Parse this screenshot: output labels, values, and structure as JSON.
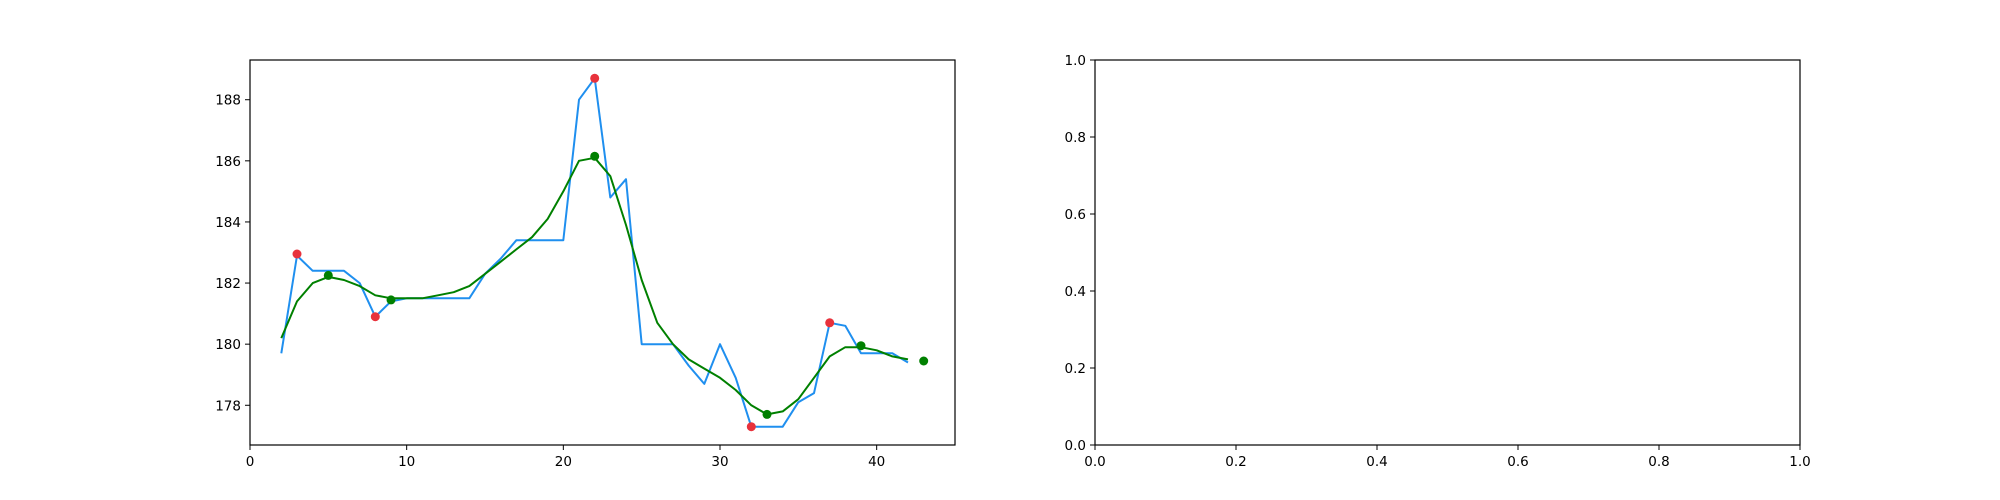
{
  "chart_data": [
    {
      "type": "line",
      "title": "",
      "xlabel": "",
      "ylabel": "",
      "xlim": [
        0,
        45
      ],
      "ylim": [
        176.7,
        189.3
      ],
      "grid": false,
      "xticks": [
        0,
        10,
        20,
        30,
        40
      ],
      "yticks": [
        178,
        180,
        182,
        184,
        186,
        188
      ],
      "xtick_labels": [
        "0",
        "10",
        "20",
        "30",
        "40"
      ],
      "ytick_labels": [
        "178",
        "180",
        "182",
        "184",
        "186",
        "188"
      ],
      "colors": {
        "raw": "#1f8fef",
        "smooth": "#008000",
        "extrema": "#e8323c",
        "smooth_extrema": "#008000"
      },
      "series": [
        {
          "kind": "line",
          "color": "#1f8fef",
          "x": [
            2,
            3,
            4,
            5,
            6,
            7,
            8,
            9,
            10,
            11,
            12,
            13,
            14,
            15,
            16,
            17,
            18,
            19,
            20,
            21,
            22,
            23,
            24,
            25,
            26,
            27,
            28,
            29,
            30,
            31,
            32,
            33,
            34,
            35,
            36,
            37,
            38,
            39,
            40,
            41,
            42
          ],
          "y": [
            179.7,
            182.9,
            182.4,
            182.4,
            182.4,
            182.0,
            180.9,
            181.4,
            181.5,
            181.5,
            181.5,
            181.5,
            181.5,
            182.3,
            182.8,
            183.4,
            183.4,
            183.4,
            183.4,
            188.0,
            188.7,
            184.8,
            185.4,
            180.0,
            180.0,
            180.0,
            179.3,
            178.7,
            180.0,
            178.9,
            177.3,
            177.3,
            177.3,
            178.1,
            178.4,
            180.7,
            180.6,
            179.7,
            179.7,
            179.7,
            179.4
          ]
        },
        {
          "kind": "line",
          "color": "#008000",
          "x": [
            2,
            3,
            4,
            5,
            6,
            7,
            8,
            9,
            10,
            11,
            12,
            13,
            14,
            15,
            16,
            17,
            18,
            19,
            20,
            21,
            22,
            23,
            24,
            25,
            26,
            27,
            28,
            29,
            30,
            31,
            32,
            33,
            34,
            35,
            36,
            37,
            38,
            39,
            40,
            41,
            42
          ],
          "y": [
            180.2,
            181.4,
            182.0,
            182.2,
            182.1,
            181.9,
            181.6,
            181.5,
            181.5,
            181.5,
            181.6,
            181.7,
            181.9,
            182.3,
            182.7,
            183.1,
            183.5,
            184.1,
            185.0,
            186.0,
            186.1,
            185.5,
            183.9,
            182.1,
            180.7,
            180.0,
            179.5,
            179.2,
            178.9,
            178.5,
            178.0,
            177.7,
            177.8,
            178.2,
            178.9,
            179.6,
            179.9,
            179.9,
            179.8,
            179.6,
            179.5
          ]
        },
        {
          "kind": "scatter",
          "color": "#e8323c",
          "x": [
            3,
            8,
            22,
            32,
            37
          ],
          "y": [
            182.95,
            180.9,
            188.7,
            177.3,
            180.7
          ]
        },
        {
          "kind": "scatter",
          "color": "#008000",
          "x": [
            5,
            9,
            22,
            33,
            39,
            43
          ],
          "y": [
            182.25,
            181.45,
            186.15,
            177.7,
            179.95,
            179.45
          ]
        }
      ]
    },
    {
      "type": "line",
      "title": "",
      "xlabel": "",
      "ylabel": "",
      "xlim": [
        0,
        1
      ],
      "ylim": [
        0,
        1
      ],
      "grid": false,
      "xticks": [
        0,
        0.2,
        0.4,
        0.6,
        0.8,
        1.0
      ],
      "yticks": [
        0,
        0.2,
        0.4,
        0.6,
        0.8,
        1.0
      ],
      "xtick_labels": [
        "0.0",
        "0.2",
        "0.4",
        "0.6",
        "0.8",
        "1.0"
      ],
      "ytick_labels": [
        "0.0",
        "0.2",
        "0.4",
        "0.6",
        "0.8",
        "1.0"
      ],
      "series": []
    }
  ]
}
